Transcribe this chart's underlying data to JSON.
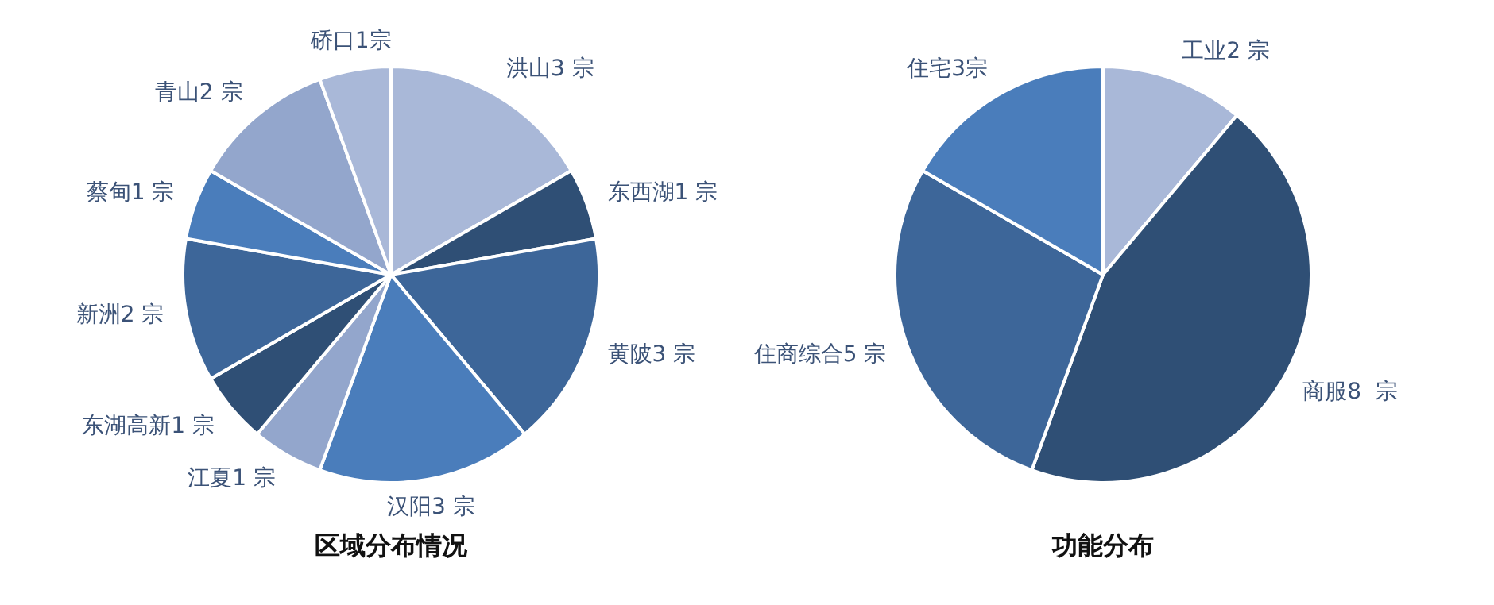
{
  "chart_data": [
    {
      "type": "pie",
      "title": "区域分布情况",
      "categories": [
        "洪山3 宗",
        "东西湖1 宗",
        "黄陂3 宗",
        "汉阳3 宗",
        "江夏1 宗",
        "东湖高新1 宗",
        "新洲2 宗",
        "蔡甸1 宗",
        "青山2 宗",
        "硚口1宗"
      ],
      "values": [
        3,
        1,
        3,
        3,
        1,
        1,
        2,
        1,
        2,
        1
      ],
      "colors": [
        "#a9b8d8",
        "#2f4f75",
        "#3d6699",
        "#4a7dbb",
        "#93a6cc",
        "#2f4f75",
        "#3d6699",
        "#4a7dbb",
        "#93a6cc",
        "#a9b8d8"
      ]
    },
    {
      "type": "pie",
      "title": "功能分布",
      "categories": [
        "工业2 宗",
        "商服8  宗",
        "住商综合5 宗",
        "住宅3宗"
      ],
      "values": [
        2,
        8,
        5,
        3
      ],
      "colors": [
        "#a9b8d8",
        "#2f4f75",
        "#3d6699",
        "#4a7dbb"
      ]
    }
  ]
}
